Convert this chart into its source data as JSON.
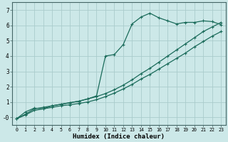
{
  "xlabel": "Humidex (Indice chaleur)",
  "bg_color": "#cce8e8",
  "grid_color": "#aacccc",
  "line_color": "#1a6b5a",
  "xlim": [
    -0.5,
    23.5
  ],
  "ylim": [
    -0.5,
    7.5
  ],
  "xticks": [
    0,
    1,
    2,
    3,
    4,
    5,
    6,
    7,
    8,
    9,
    10,
    11,
    12,
    13,
    14,
    15,
    16,
    17,
    18,
    19,
    20,
    21,
    22,
    23
  ],
  "yticks": [
    0,
    1,
    2,
    3,
    4,
    5,
    6,
    7
  ],
  "ytick_labels": [
    "-0",
    "1",
    "2",
    "3",
    "4",
    "5",
    "6",
    "7"
  ],
  "curve_x": [
    0,
    1,
    2,
    3,
    4,
    5,
    6,
    7,
    8,
    9,
    10,
    11,
    12,
    13,
    14,
    15,
    16,
    17,
    18,
    19,
    20,
    21,
    22,
    23
  ],
  "curve_y": [
    -0.1,
    0.35,
    0.6,
    0.55,
    0.75,
    0.85,
    0.95,
    1.05,
    1.2,
    1.4,
    4.0,
    4.1,
    4.75,
    6.1,
    6.55,
    6.8,
    6.5,
    6.3,
    6.1,
    6.2,
    6.2,
    6.3,
    6.25,
    6.05
  ],
  "line1_x": [
    0,
    1,
    2,
    3,
    4,
    5,
    6,
    7,
    8,
    9,
    10,
    11,
    12,
    13,
    14,
    15,
    16,
    17,
    18,
    19,
    20,
    21,
    22,
    23
  ],
  "line1_y": [
    -0.1,
    0.2,
    0.55,
    0.65,
    0.75,
    0.85,
    0.95,
    1.05,
    1.2,
    1.35,
    1.55,
    1.8,
    2.1,
    2.45,
    2.85,
    3.2,
    3.6,
    4.0,
    4.4,
    4.8,
    5.2,
    5.6,
    5.9,
    6.2
  ],
  "line2_x": [
    0,
    1,
    2,
    3,
    4,
    5,
    6,
    7,
    8,
    9,
    10,
    11,
    12,
    13,
    14,
    15,
    16,
    17,
    18,
    19,
    20,
    21,
    22,
    23
  ],
  "line2_y": [
    -0.1,
    0.15,
    0.45,
    0.55,
    0.65,
    0.75,
    0.82,
    0.9,
    1.0,
    1.15,
    1.35,
    1.58,
    1.85,
    2.15,
    2.5,
    2.8,
    3.15,
    3.5,
    3.85,
    4.2,
    4.6,
    4.95,
    5.3,
    5.6
  ]
}
